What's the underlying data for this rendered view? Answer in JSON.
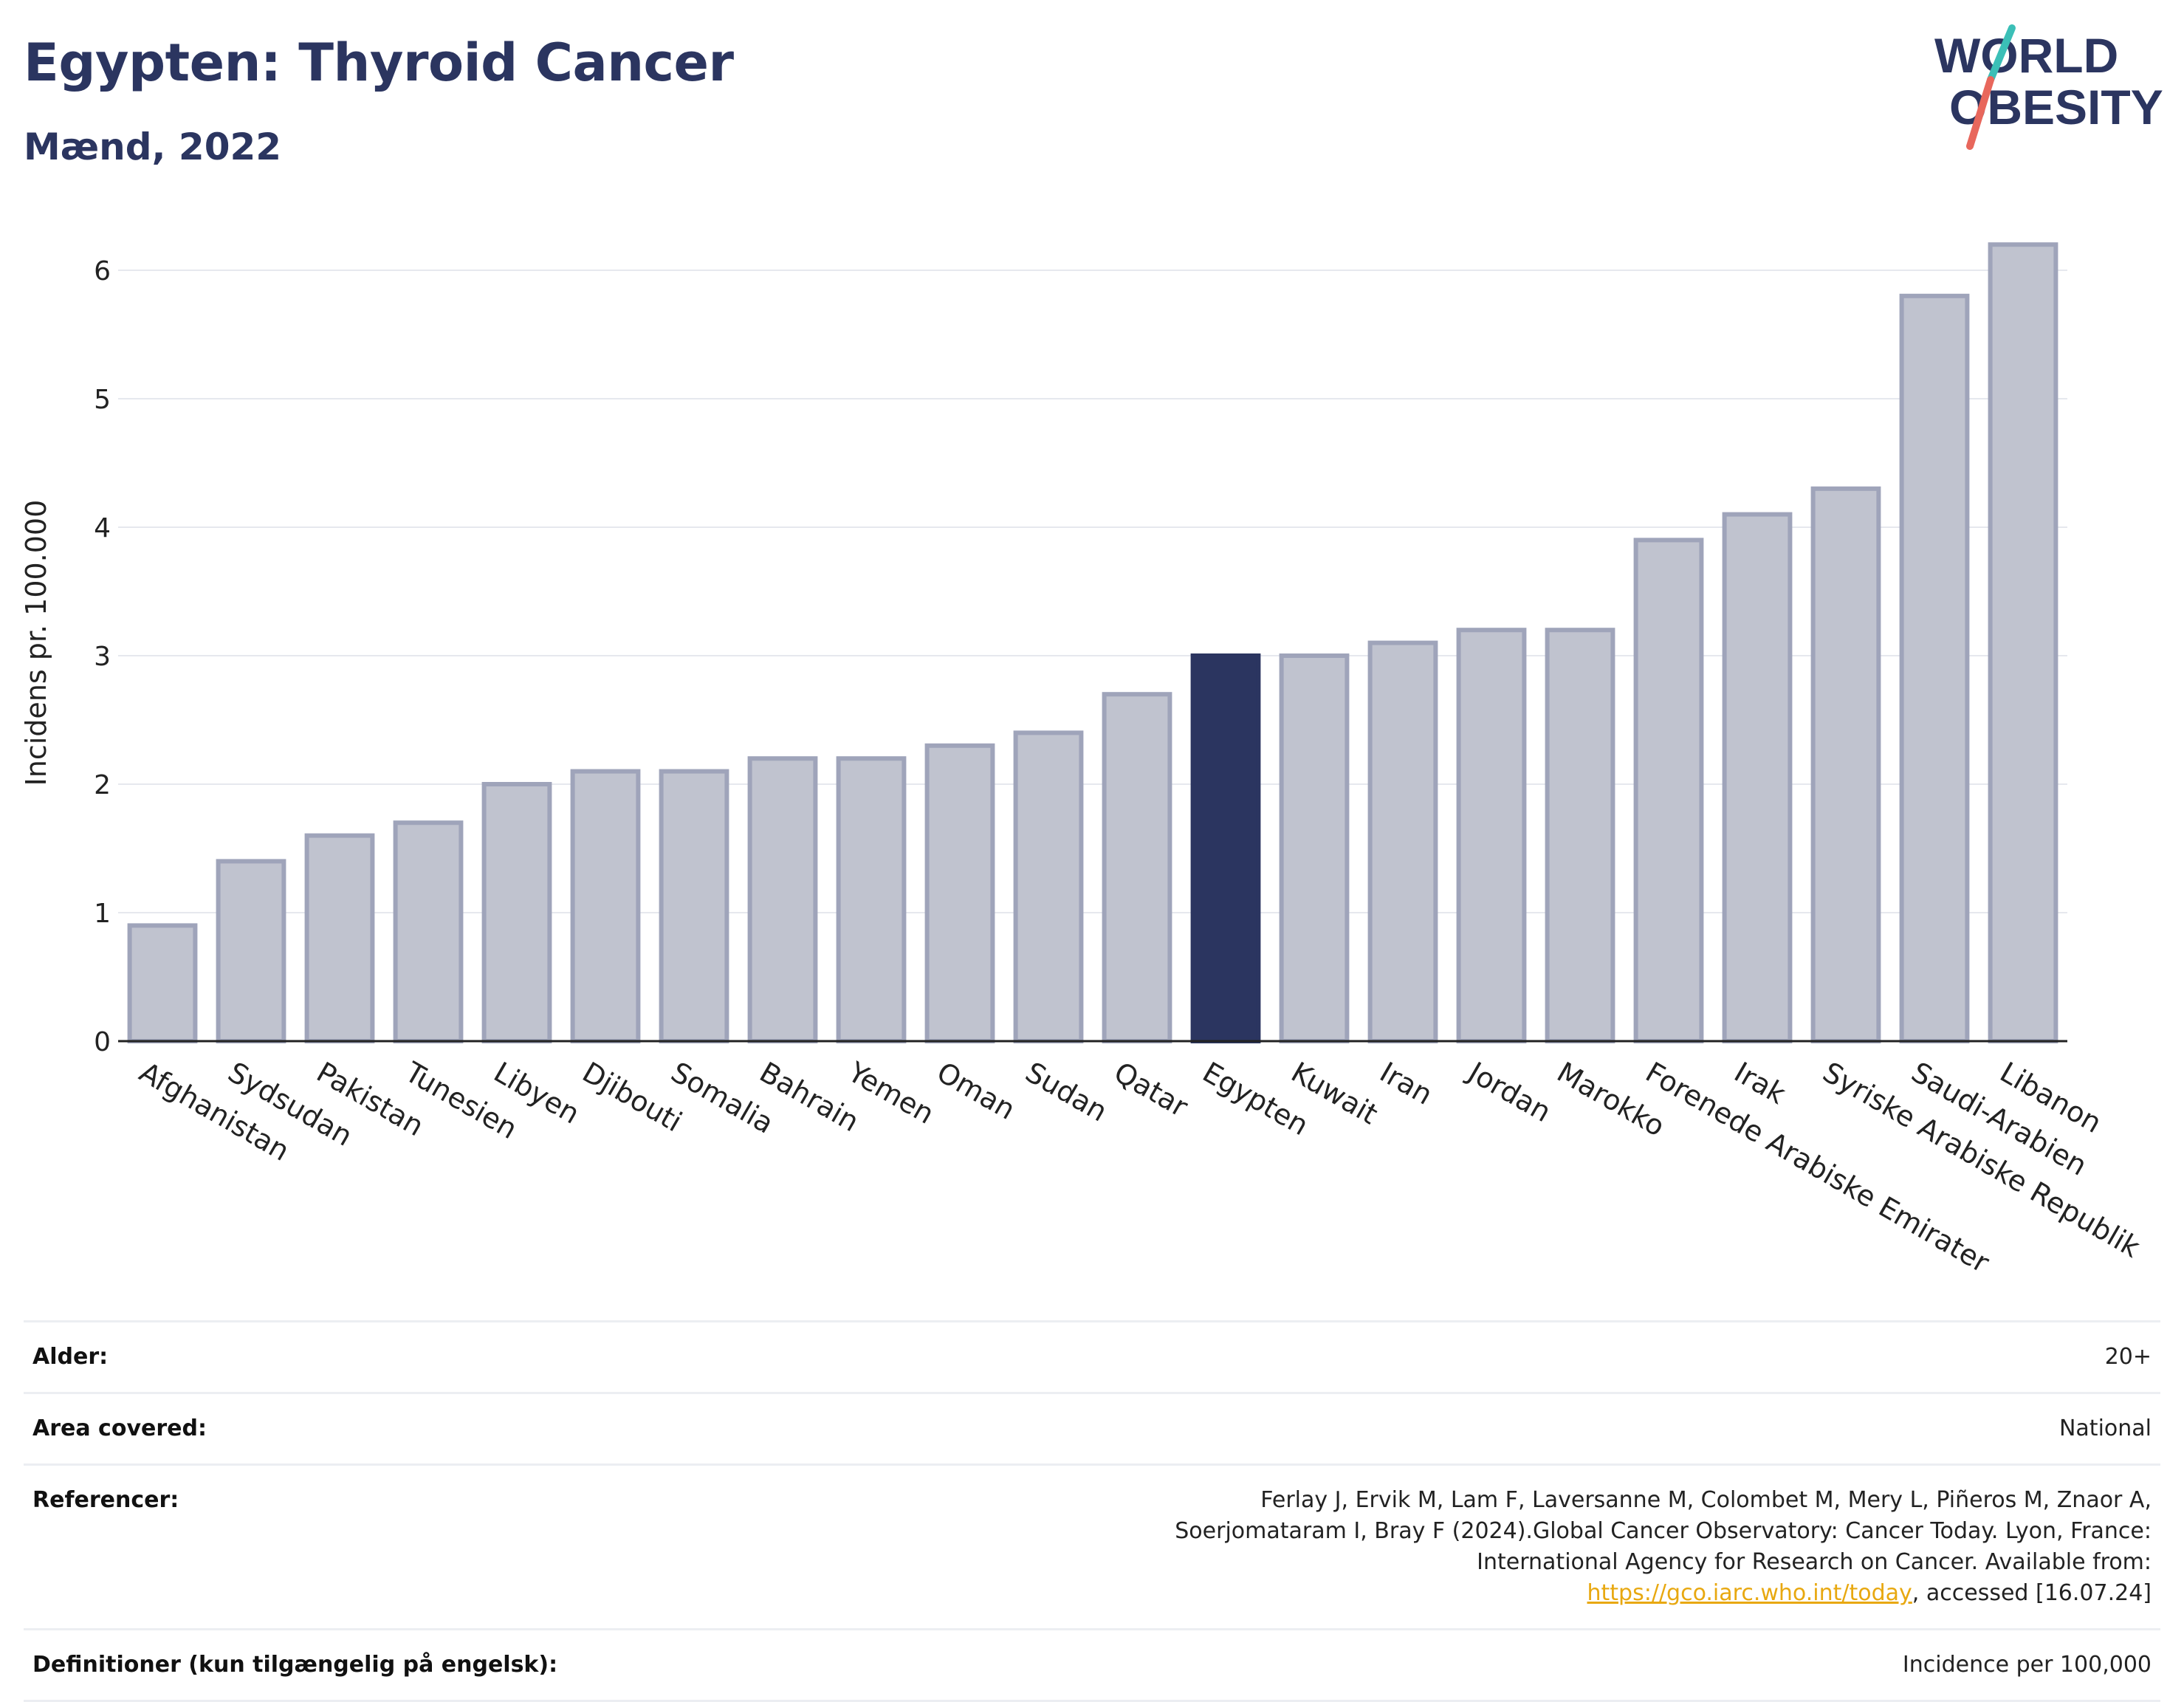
{
  "header": {
    "title": "Egypten: Thyroid Cancer",
    "subtitle": "Mænd, 2022"
  },
  "logo": {
    "line1": "WORLD",
    "line2": "OBESITY",
    "colors": {
      "text": "#2b3560",
      "slash_top": "#3bbfb7",
      "slash_bottom": "#e8675c"
    }
  },
  "chart_data": {
    "type": "bar",
    "ylabel": "Incidens pr. 100.000",
    "xlabel": "",
    "ylim": [
      0,
      6.4
    ],
    "yticks": [
      0,
      1,
      2,
      3,
      4,
      5,
      6
    ],
    "grid": true,
    "highlight": "Egypten",
    "colors": {
      "bar": "#c0c3cf",
      "bar_border": "#9fa4ba",
      "highlight": "#2b3560"
    },
    "categories": [
      "Afghanistan",
      "Sydsudan",
      "Pakistan",
      "Tunesien",
      "Libyen",
      "Djibouti",
      "Somalia",
      "Bahrain",
      "Yemen",
      "Oman",
      "Sudan",
      "Qatar",
      "Egypten",
      "Kuwait",
      "Iran",
      "Jordan",
      "Marokko",
      "Forenede Arabiske Emirater",
      "Irak",
      "Syriske Arabiske Republik",
      "Saudi-Arabien",
      "Libanon"
    ],
    "values": [
      0.9,
      1.4,
      1.6,
      1.7,
      2.0,
      2.1,
      2.1,
      2.2,
      2.2,
      2.3,
      2.4,
      2.7,
      3.0,
      3.0,
      3.1,
      3.2,
      3.2,
      3.9,
      4.1,
      4.3,
      5.8,
      6.2
    ]
  },
  "meta": {
    "rows": [
      {
        "label": "Alder:",
        "value": "20+"
      },
      {
        "label": "Area covered:",
        "value": "National"
      },
      {
        "label": "Referencer:",
        "value_pre": "Ferlay J, Ervik M, Lam F, Laversanne M, Colombet M, Mery L, Piñeros M, Znaor A, Soerjomataram I, Bray F (2024).Global Cancer Observatory: Cancer Today. Lyon, France: International Agency for Research on Cancer. Available from: ",
        "link": "https://gco.iarc.who.int/today",
        "value_post": ", accessed [16.07.24]"
      },
      {
        "label": "Definitioner (kun tilgængelig på engelsk):",
        "value": "Incidence per 100,000"
      }
    ]
  }
}
